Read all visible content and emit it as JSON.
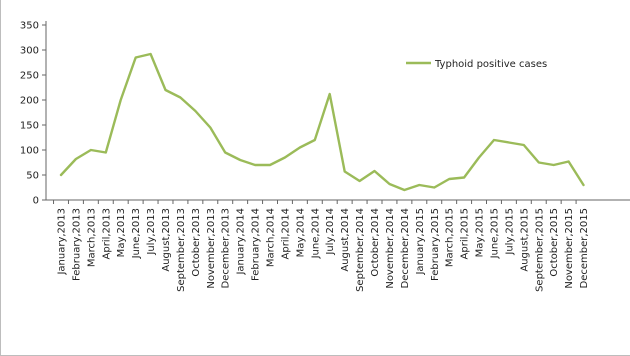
{
  "chart_data": {
    "type": "line",
    "series": [
      {
        "name": "Typhoid positive cases",
        "color": "#9bbb59",
        "values": [
          50,
          82,
          100,
          95,
          200,
          285,
          292,
          220,
          205,
          178,
          145,
          95,
          80,
          70,
          70,
          85,
          105,
          120,
          212,
          57,
          38,
          58,
          32,
          20,
          30,
          25,
          42,
          45,
          85,
          120,
          115,
          110,
          75,
          70,
          77,
          30
        ]
      }
    ],
    "categories": [
      "January,2013",
      "February,2013",
      "March,2013",
      "April,2013",
      "May,2013",
      "June,2013",
      "July,2013",
      "August,2013",
      "September,2013",
      "October,2013",
      "November,2013",
      "December,2013",
      "January,2014",
      "February,2014",
      "March,2014",
      "April,2014",
      "May,2014",
      "June,2014",
      "July,2014",
      "August,2014",
      "September,2014",
      "October,2014",
      "November,2014",
      "December,2014",
      "January,2015",
      "February,2015",
      "March,2015",
      "April,2015",
      "May,2015",
      "June,2015",
      "July,2015",
      "August,2015",
      "September,2015",
      "October,2015",
      "November,2015",
      "December,2015"
    ],
    "ylim": [
      0,
      350
    ],
    "yticks": [
      "0",
      "50",
      "100",
      "150",
      "200",
      "250",
      "300",
      "350"
    ],
    "legend_position": "top-right",
    "grid": false
  }
}
